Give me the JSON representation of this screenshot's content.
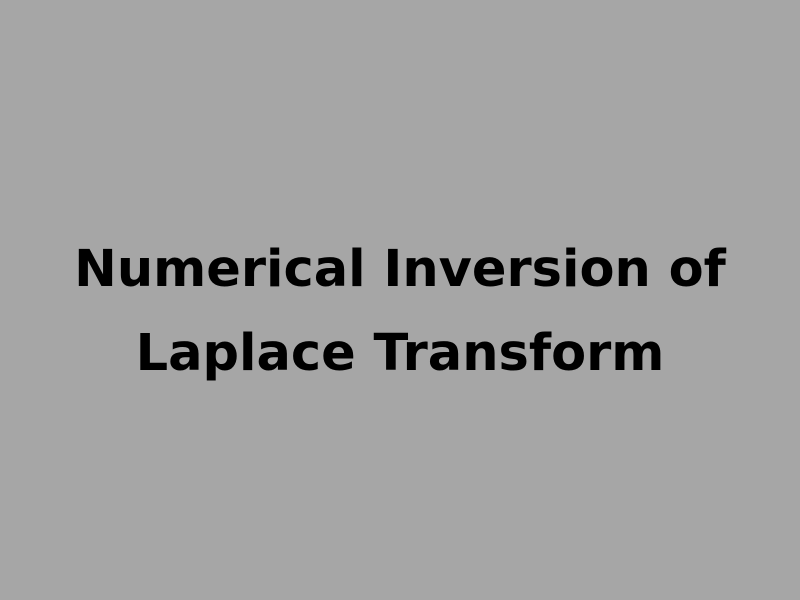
{
  "colors": {
    "background": "#a6a6a6",
    "text": "#000000"
  },
  "title": {
    "line1": "Numerical Inversion of",
    "line2": "Laplace Transform"
  }
}
